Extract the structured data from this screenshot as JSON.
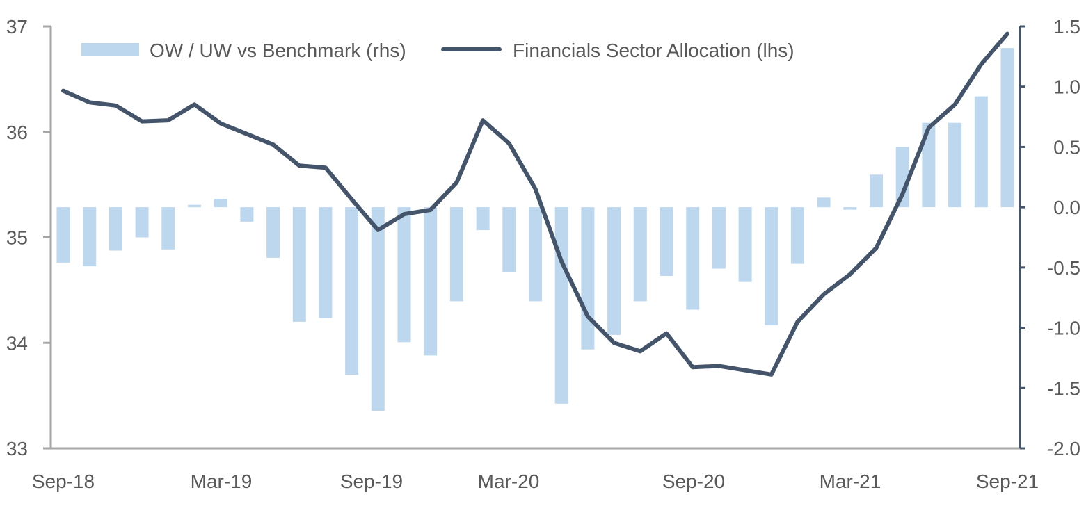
{
  "chart_data": {
    "type": "bar+line",
    "title": "",
    "x": [
      "Sep-18",
      "Oct-18",
      "Nov-18",
      "Dec-18",
      "Jan-19",
      "Feb-19",
      "Mar-19",
      "Apr-19",
      "May-19",
      "Jun-19",
      "Jul-19",
      "Aug-19",
      "Sep-19",
      "Oct-19",
      "Nov-19",
      "Dec-19",
      "Jan-20",
      "Feb-20",
      "Mar-20",
      "Apr-20",
      "May-20",
      "Jun-20",
      "Jul-20",
      "Aug-20",
      "Sep-20",
      "Oct-20",
      "Nov-20",
      "Dec-20",
      "Jan-21",
      "Feb-21",
      "Mar-21",
      "Apr-21",
      "May-21",
      "Jun-21",
      "Jul-21",
      "Aug-21",
      "Sep-21"
    ],
    "x_tick_labels": [
      "Sep-18",
      "Mar-19",
      "Sep-19",
      "Mar-20",
      "Sep-20",
      "Mar-21",
      "Sep-21"
    ],
    "series": [
      {
        "name": "OW / UW vs Benchmark (rhs)",
        "type": "bar",
        "axis": "right",
        "color": "#BDD7EE",
        "values": [
          -0.46,
          -0.49,
          -0.36,
          -0.25,
          -0.35,
          0.02,
          0.07,
          -0.12,
          -0.42,
          -0.95,
          -0.92,
          -1.39,
          -1.69,
          -1.12,
          -1.23,
          -0.78,
          -0.19,
          -0.54,
          -0.78,
          -1.63,
          -1.18,
          -1.06,
          -0.78,
          -0.57,
          -0.85,
          -0.51,
          -0.62,
          -0.98,
          -0.47,
          0.08,
          -0.02,
          0.27,
          0.5,
          0.7,
          0.7,
          0.92,
          1.32
        ]
      },
      {
        "name": "Financials Sector Allocation (lhs)",
        "type": "line",
        "axis": "left",
        "color": "#44546A",
        "values": [
          36.39,
          36.28,
          36.25,
          36.1,
          36.11,
          36.26,
          36.08,
          35.98,
          35.88,
          35.68,
          35.66,
          35.36,
          35.07,
          35.22,
          35.26,
          35.52,
          36.11,
          35.89,
          35.46,
          34.77,
          34.25,
          34.0,
          33.92,
          34.09,
          33.77,
          33.78,
          33.74,
          33.7,
          34.2,
          34.46,
          34.65,
          34.9,
          35.41,
          36.04,
          36.26,
          36.64,
          36.93
        ]
      }
    ],
    "left_axis": {
      "label": "",
      "range": [
        33,
        37
      ],
      "ticks": [
        "33",
        "34",
        "35",
        "36",
        "37"
      ]
    },
    "right_axis": {
      "label": "",
      "range": [
        -2.0,
        1.5
      ],
      "ticks": [
        "-2.0",
        "-1.5",
        "-1.0",
        "-0.5",
        "0.0",
        "0.5",
        "1.0",
        "1.5"
      ]
    },
    "xlabel": "",
    "grid": false,
    "legend": {
      "placement": "top",
      "entries": [
        "OW / UW vs Benchmark (rhs)",
        "Financials Sector Allocation (lhs)"
      ]
    }
  }
}
